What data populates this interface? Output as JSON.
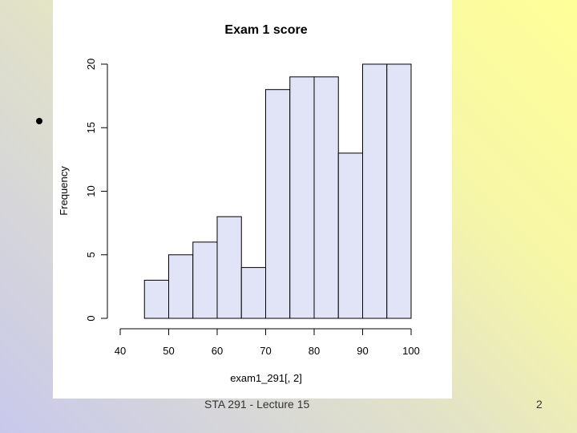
{
  "chart_data": {
    "type": "histogram",
    "title": "Exam 1 score",
    "x_label": "exam1_291[, 2]",
    "y_label": "Frequency",
    "bins": [
      45,
      50,
      55,
      60,
      65,
      70,
      75,
      80,
      85,
      90,
      95,
      100
    ],
    "values": [
      3,
      5,
      6,
      8,
      4,
      18,
      19,
      19,
      13,
      20,
      20
    ],
    "color": "#e1e4f7",
    "xlim": [
      40,
      100
    ],
    "xticks": [
      40,
      50,
      60,
      70,
      80,
      90,
      100
    ],
    "ylim": [
      0,
      20
    ],
    "yticks": [
      0,
      5,
      10,
      15,
      20
    ]
  },
  "footer": "STA 291 - Lecture 15",
  "page_number": "2"
}
